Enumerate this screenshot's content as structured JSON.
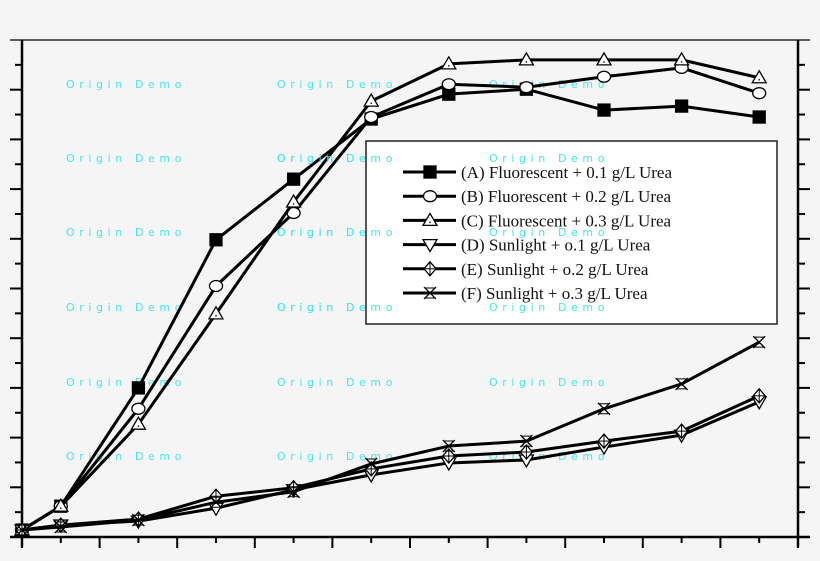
{
  "chart_data": {
    "type": "line",
    "title": "",
    "xlabel": "",
    "ylabel": "",
    "x": [
      0,
      0.5,
      1.5,
      2.5,
      3.5,
      4.5,
      5.5,
      6.5,
      7.5,
      8.5,
      9.5
    ],
    "xlim": [
      0,
      10
    ],
    "ylim": [
      0,
      100
    ],
    "x_major_ticks": 10,
    "y_major_ticks": 10,
    "tick_labels_visible": false,
    "grid": false,
    "legend_position": "upper right (inside plot)",
    "series": [
      {
        "name": "(A) Fluorescent + 0.1 g/L Urea",
        "marker": "filled-square",
        "values": [
          1.4,
          6.2,
          30.0,
          59.8,
          72.0,
          84.1,
          89.1,
          90.1,
          85.9,
          86.7,
          84.5
        ]
      },
      {
        "name": "(B) Fluorescent + 0.2 g/L Urea",
        "marker": "open-circle",
        "values": [
          1.4,
          6.2,
          25.8,
          50.5,
          65.2,
          84.5,
          91.1,
          90.5,
          92.6,
          94.4,
          89.3
        ]
      },
      {
        "name": "(C) Fluorescent + 0.3 g/L Urea",
        "marker": "open-triangle-up",
        "values": [
          1.4,
          6.2,
          22.7,
          44.9,
          67.4,
          87.7,
          95.2,
          96.0,
          96.0,
          96.0,
          92.4
        ]
      },
      {
        "name": "(D) Sunlight + o.1 g/L Urea",
        "marker": "open-triangle-down",
        "values": [
          1.4,
          2.4,
          3.2,
          5.8,
          9.5,
          12.5,
          14.9,
          15.5,
          18.1,
          20.5,
          27.2
        ]
      },
      {
        "name": "(E) Sunlight + o.2 g/L Urea",
        "marker": "crossed-diamond",
        "values": [
          1.4,
          2.4,
          3.6,
          8.2,
          9.9,
          13.7,
          16.3,
          17.1,
          19.3,
          21.3,
          28.4
        ]
      },
      {
        "name": "(F) Sunlight + o.3 g/L Urea",
        "marker": "crossed-hourglass",
        "values": [
          1.4,
          2.0,
          3.4,
          7.0,
          9.1,
          14.7,
          18.3,
          19.3,
          25.8,
          30.8,
          39.2
        ]
      }
    ]
  },
  "watermark": {
    "text": "Origin Demo",
    "color": "#46e6ef"
  },
  "colors": {
    "background": "#f5f5f5",
    "line": "#000000",
    "legend_bg": "#ffffff"
  }
}
